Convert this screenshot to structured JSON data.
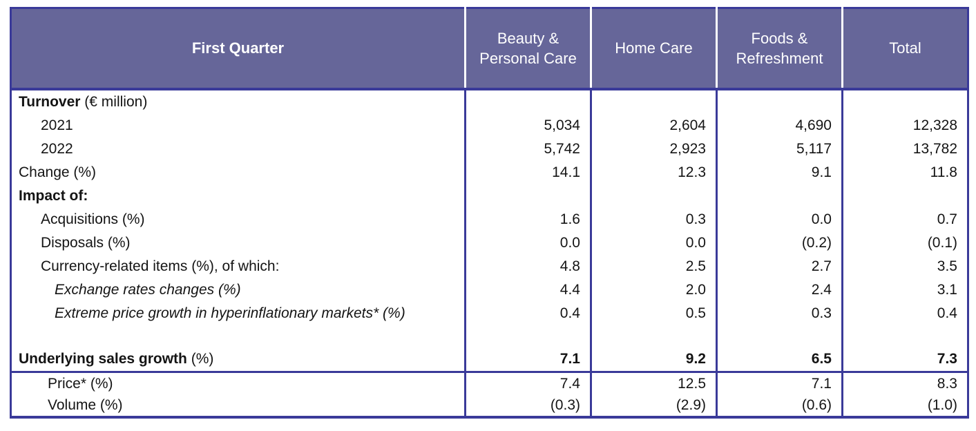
{
  "colors": {
    "header_bg": "#666699",
    "grid_border": "#3A3A99",
    "header_divider": "#ffffff",
    "header_text": "#ffffff",
    "body_text": "#141414"
  },
  "table": {
    "title_cell": "First Quarter",
    "columns": [
      "Beauty & Personal Care",
      "Home Care",
      "Foods & Refreshment",
      "Total"
    ],
    "rows": [
      {
        "label": "Turnover",
        "suffix": " (€ million)",
        "bold": true,
        "indent": 0,
        "values": [
          "",
          "",
          "",
          ""
        ]
      },
      {
        "label": "2021",
        "indent": 1,
        "values": [
          "5,034",
          "2,604",
          "4,690",
          "12,328"
        ]
      },
      {
        "label": "2022",
        "indent": 1,
        "values": [
          "5,742",
          "2,923",
          "5,117",
          "13,782"
        ]
      },
      {
        "label": "Change (%)",
        "indent": 0,
        "values": [
          "14.1",
          "12.3",
          "9.1",
          "11.8"
        ]
      },
      {
        "label": "Impact of:",
        "bold": true,
        "indent": 0,
        "values": [
          "",
          "",
          "",
          ""
        ]
      },
      {
        "label": "Acquisitions (%)",
        "indent": 1,
        "values": [
          "1.6",
          "0.3",
          "0.0",
          "0.7"
        ]
      },
      {
        "label": "Disposals (%)",
        "indent": 1,
        "values": [
          "0.0",
          "0.0",
          "(0.2)",
          "(0.1)"
        ]
      },
      {
        "label": "Currency-related items (%), of which:",
        "indent": 1,
        "values": [
          "4.8",
          "2.5",
          "2.7",
          "3.5"
        ]
      },
      {
        "label": "Exchange rates changes (%)",
        "italic": true,
        "indent": 3,
        "values": [
          "4.4",
          "2.0",
          "2.4",
          "3.1"
        ]
      },
      {
        "label": "Extreme price growth in hyperinflationary markets* (%)",
        "italic": true,
        "indent": 3,
        "values": [
          "0.4",
          "0.5",
          "0.3",
          "0.4"
        ]
      },
      {
        "blank": true,
        "values": [
          "",
          "",
          "",
          ""
        ]
      },
      {
        "label": "Underlying sales growth",
        "suffix": " (%)",
        "bold": true,
        "values_bold": true,
        "rule_below": true,
        "indent": 0,
        "values": [
          "7.1",
          "9.2",
          "6.5",
          "7.3"
        ]
      },
      {
        "label": "Price* (%)",
        "indent": 2,
        "section": "pv",
        "values": [
          "7.4",
          "12.5",
          "7.1",
          "8.3"
        ]
      },
      {
        "label": "Volume (%)",
        "indent": 2,
        "section": "pv",
        "values": [
          "(0.3)",
          "(2.9)",
          "(0.6)",
          "(1.0)"
        ]
      }
    ]
  }
}
